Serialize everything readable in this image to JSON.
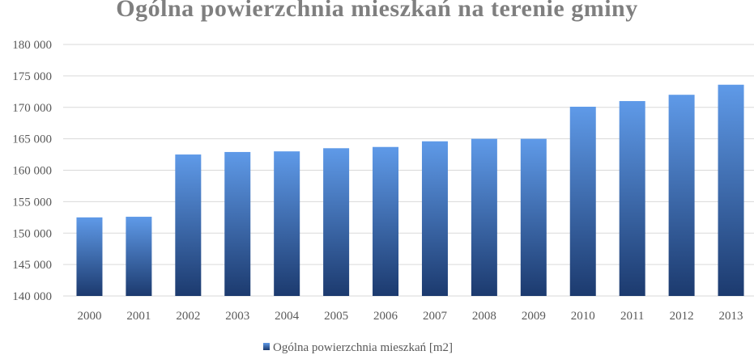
{
  "chart_data": {
    "type": "bar",
    "title": "Ogólna powierzchnia mieszkań na terenie gminy",
    "xlabel": "",
    "ylabel": "",
    "categories": [
      "2000",
      "2001",
      "2002",
      "2003",
      "2004",
      "2005",
      "2006",
      "2007",
      "2008",
      "2009",
      "2010",
      "2011",
      "2012",
      "2013"
    ],
    "series": [
      {
        "name": "Ogólna powierzchnia mieszkań [m2]",
        "values": [
          152500,
          152600,
          162500,
          162900,
          163000,
          163500,
          163700,
          164600,
          165000,
          165000,
          170100,
          171000,
          172000,
          173600
        ]
      }
    ],
    "ylim": [
      140000,
      180000
    ],
    "yticks": [
      140000,
      145000,
      150000,
      155000,
      160000,
      165000,
      170000,
      175000,
      180000
    ],
    "ytick_labels": [
      "140 000",
      "145 000",
      "150 000",
      "155 000",
      "160 000",
      "165 000",
      "170 000",
      "175 000",
      "180 000"
    ],
    "grid": true,
    "legend_position": "bottom",
    "colors": {
      "bar_top": "#5f9ae8",
      "bar_bottom": "#1c3a6e",
      "grid": "#d9d9d9",
      "title": "#7f7f7f",
      "text": "#595959"
    }
  }
}
